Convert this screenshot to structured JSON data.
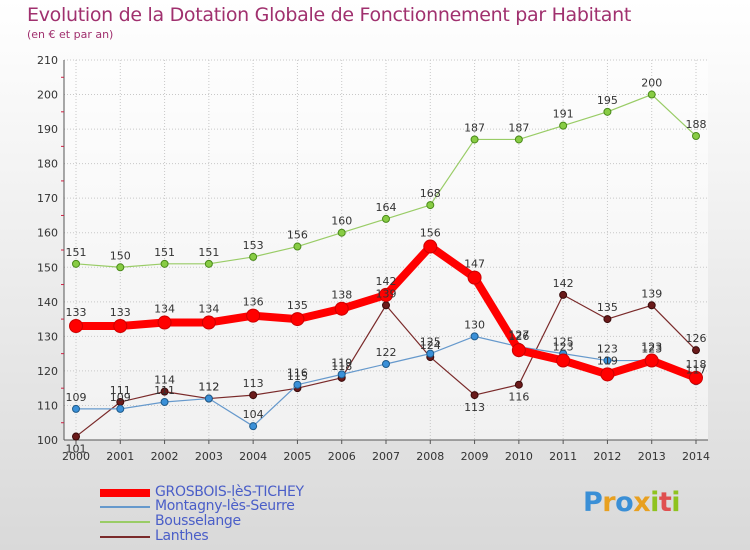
{
  "title": "Evolution de la Dotation Globale de Fonctionnement par Habitant",
  "subtitle": "(en € et par an)",
  "logo": {
    "text": "Proxiti"
  },
  "chart_data": {
    "type": "line",
    "x": [
      2000,
      2001,
      2002,
      2003,
      2004,
      2005,
      2006,
      2007,
      2008,
      2009,
      2010,
      2011,
      2012,
      2013,
      2014
    ],
    "ylim": [
      100,
      210
    ],
    "yticks": [
      100,
      110,
      120,
      130,
      140,
      150,
      160,
      170,
      180,
      190,
      200,
      210
    ],
    "grid": true,
    "legend_position": "bottom-left",
    "series": [
      {
        "name": "GROSBOIS-lèS-TICHEY",
        "color": "#ff0000",
        "values": [
          133,
          133,
          134,
          134,
          136,
          135,
          138,
          142,
          156,
          147,
          126,
          123,
          119,
          123,
          118
        ]
      },
      {
        "name": "Montagny-lès-Seurre",
        "color": "#6699cc",
        "values": [
          109,
          109,
          111,
          112,
          104,
          116,
          119,
          122,
          125,
          130,
          127,
          125,
          123,
          123,
          117
        ]
      },
      {
        "name": "Bousselange",
        "color": "#99cc66",
        "values": [
          151,
          150,
          151,
          151,
          153,
          156,
          160,
          164,
          168,
          187,
          187,
          191,
          195,
          200,
          188
        ]
      },
      {
        "name": "Lanthes",
        "color": "#7a2a2a",
        "values": [
          101,
          111,
          114,
          112,
          113,
          115,
          118,
          139,
          124,
          113,
          116,
          142,
          135,
          139,
          126
        ]
      }
    ]
  }
}
